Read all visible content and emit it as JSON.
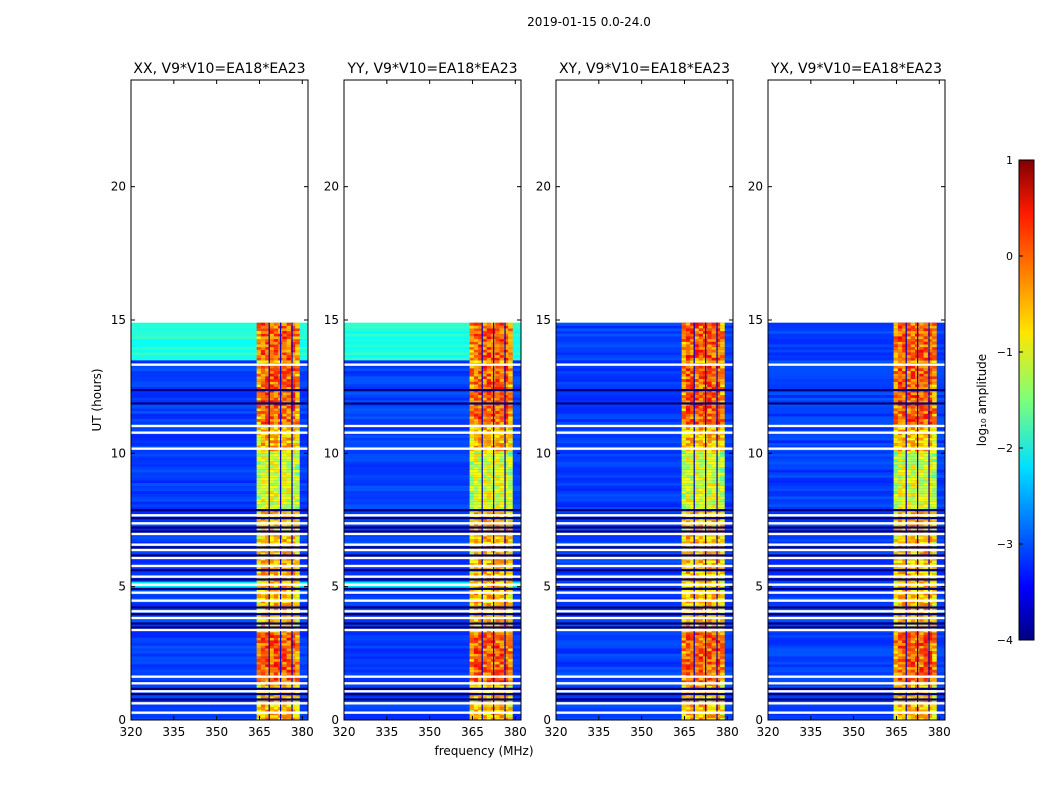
{
  "chart_data": {
    "type": "heatmap",
    "title": "2019-01-15 0.0-24.0",
    "xlabel": "frequency (MHz)",
    "ylabel": "UT (hours)",
    "colorbar": {
      "label": "log₁₀ amplitude",
      "range": [
        -4,
        1
      ],
      "ticks": [
        "1",
        "0",
        "−1",
        "−2",
        "−3",
        "−4"
      ],
      "colormap": "jet"
    },
    "xlim": [
      320,
      382
    ],
    "ylim": [
      0,
      24
    ],
    "x_ticks": [
      "320",
      "335",
      "350",
      "365",
      "380"
    ],
    "y_ticks": [
      "0",
      "5",
      "10",
      "15",
      "20"
    ],
    "data_extent_hours": [
      0.0,
      14.9
    ],
    "band_mhz": [
      364,
      379
    ],
    "panels": [
      {
        "name": "XX",
        "title": "XX, V9*V10=EA18*EA23"
      },
      {
        "name": "YY",
        "title": "YY, V9*V10=EA18*EA23"
      },
      {
        "name": "XY",
        "title": "XY, V9*V10=EA18*EA23"
      },
      {
        "name": "YX",
        "title": "YX, V9*V10=EA18*EA23"
      }
    ]
  }
}
